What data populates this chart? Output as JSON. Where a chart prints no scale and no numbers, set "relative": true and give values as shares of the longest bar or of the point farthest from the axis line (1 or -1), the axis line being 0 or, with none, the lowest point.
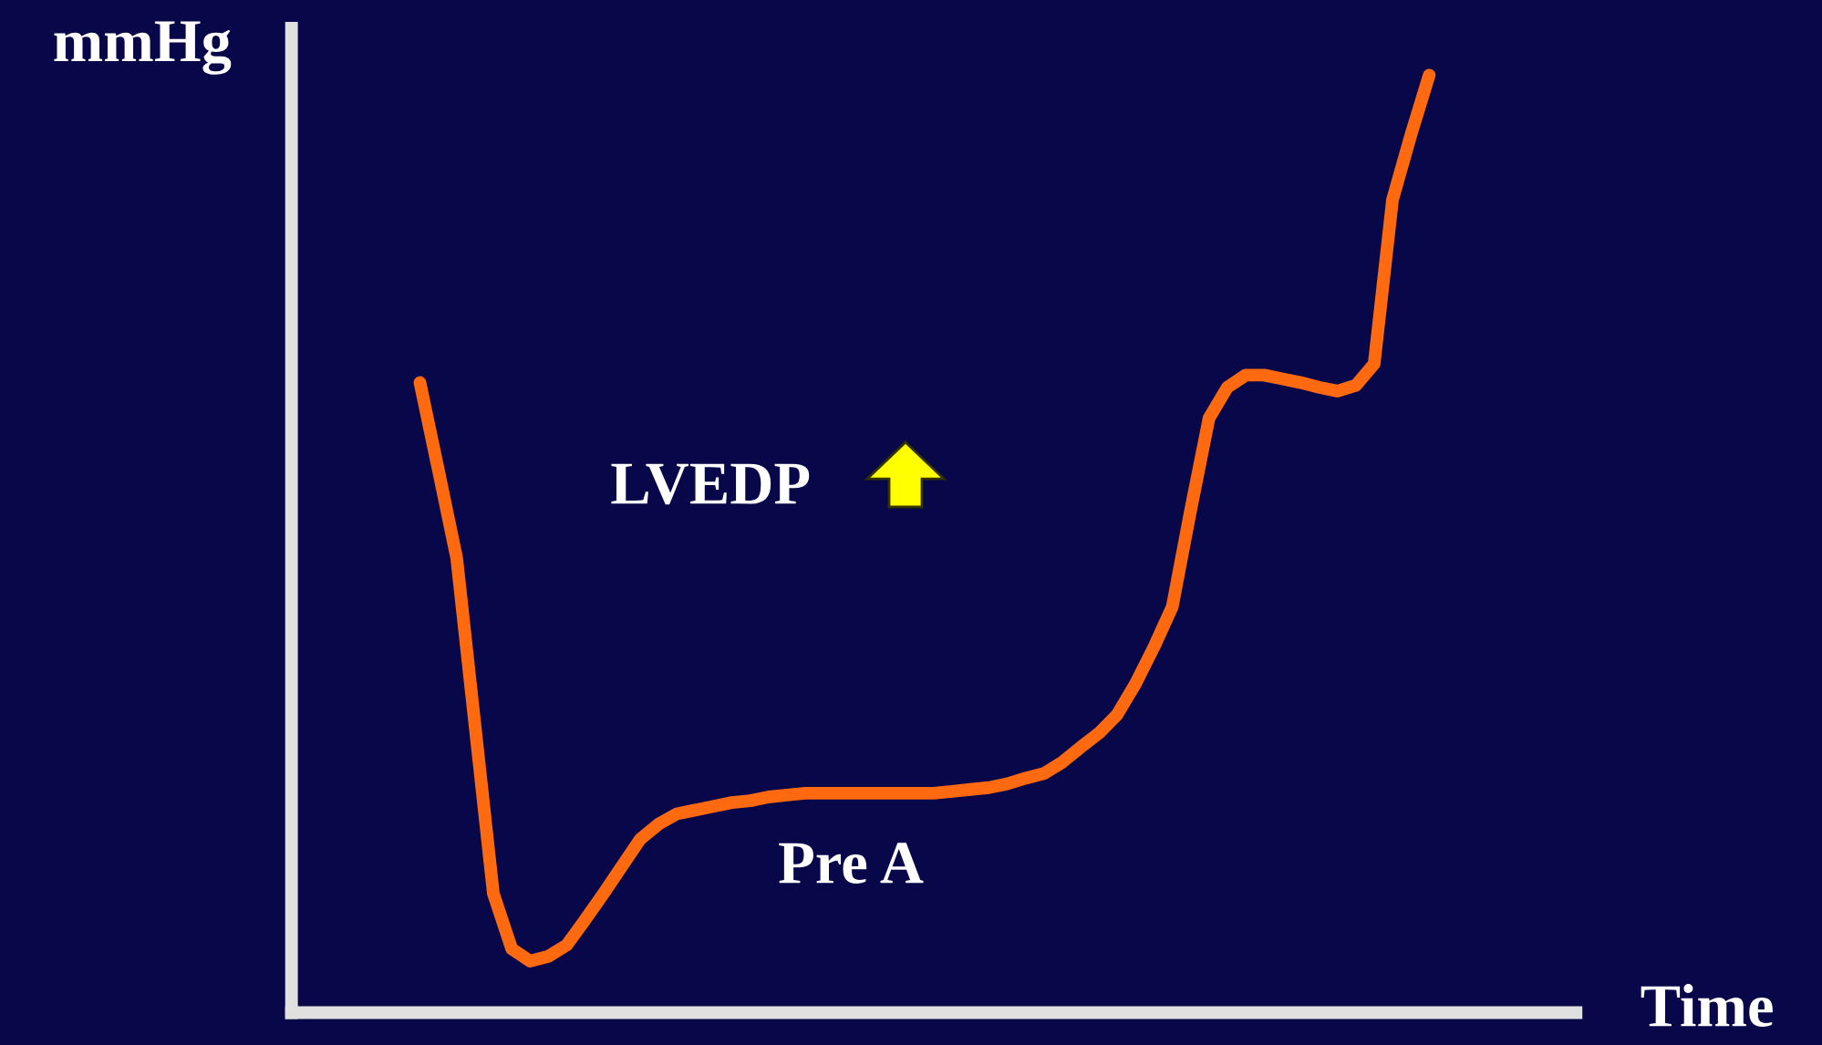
{
  "chart_data": {
    "type": "line",
    "relative": true,
    "xlabel": "Time",
    "ylabel": "mmHg",
    "annotations": [
      "LVEDP",
      "Pre A"
    ],
    "categories": [
      null,
      null,
      null,
      null,
      null,
      null,
      null,
      null,
      null,
      null,
      null,
      null,
      null,
      null,
      null,
      null,
      null,
      null,
      null,
      null,
      null,
      null,
      null,
      null,
      null,
      null,
      null,
      null,
      null,
      null,
      null,
      null,
      null,
      null,
      null,
      null,
      null,
      null,
      null,
      null,
      null,
      null,
      null,
      null,
      null,
      null,
      null,
      null,
      null,
      null,
      null,
      null,
      null,
      null,
      null,
      null,
      null,
      null,
      null,
      null,
      null,
      null,
      null,
      null,
      null,
      null,
      null,
      null,
      null,
      null,
      null
    ],
    "series": [
      {
        "color": "#ff6a10",
        "values": [
          null,
          null,
          null,
          null,
          null,
          null,
          null,
          0.672,
          0.579,
          0.485,
          0.306,
          0.127,
          0.068,
          0.055,
          0.06,
          0.072,
          0.099,
          0.127,
          0.156,
          0.185,
          0.201,
          0.212,
          0.216,
          0.22,
          0.224,
          0.226,
          0.23,
          0.232,
          0.234,
          0.234,
          0.234,
          0.234,
          0.234,
          0.234,
          0.234,
          0.234,
          0.236,
          0.238,
          0.24,
          0.244,
          0.25,
          0.255,
          0.267,
          0.283,
          0.298,
          0.318,
          0.351,
          0.39,
          0.433,
          0.536,
          0.634,
          0.667,
          0.68,
          0.68,
          0.676,
          0.672,
          0.667,
          0.663,
          0.669,
          0.692,
          0.867,
          0.936,
          1.0,
          null,
          null,
          null,
          null,
          null,
          null,
          null,
          null
        ]
      }
    ],
    "grid": false,
    "legend": false,
    "marker": "none",
    "line_style": "solid"
  }
}
